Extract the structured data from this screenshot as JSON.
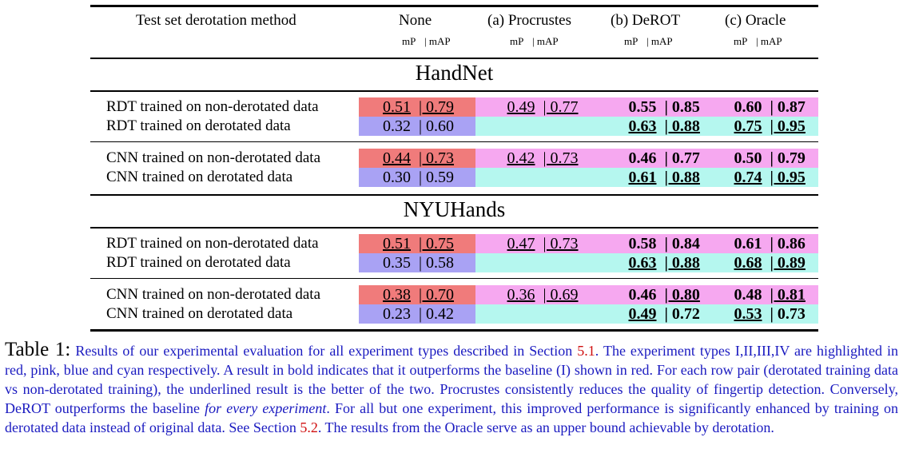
{
  "header": {
    "method_label": "Test set derotation method",
    "columns": [
      "None",
      "(a) Procrustes",
      "(b) DeROT",
      "(c) Oracle"
    ],
    "sublabel_mp": "mP",
    "sublabel_map": "| mAP"
  },
  "sections": [
    {
      "name": "HandNet",
      "groups": [
        {
          "rows": [
            {
              "label": "RDT trained on non-derotated data",
              "cells": [
                {
                  "mp": "0.51",
                  "map": "| 0.79"
                },
                {
                  "mp": "0.49",
                  "map": "| 0.77"
                },
                {
                  "mp": "0.55",
                  "map": "| 0.85"
                },
                {
                  "mp": "0.60",
                  "map": "| 0.87"
                }
              ]
            },
            {
              "label": "RDT trained on derotated data",
              "cells": [
                {
                  "mp": "0.32",
                  "map": "| 0.60"
                },
                {
                  "mp": "",
                  "map": ""
                },
                {
                  "mp": "0.63",
                  "map": "| 0.88"
                },
                {
                  "mp": "0.75",
                  "map": "| 0.95"
                }
              ]
            }
          ]
        },
        {
          "rows": [
            {
              "label": "CNN trained on non-derotated data",
              "cells": [
                {
                  "mp": "0.44",
                  "map": "| 0.73"
                },
                {
                  "mp": "0.42",
                  "map": "| 0.73"
                },
                {
                  "mp": "0.46",
                  "map": "| 0.77"
                },
                {
                  "mp": "0.50",
                  "map": "| 0.79"
                }
              ]
            },
            {
              "label": "CNN trained on derotated data",
              "cells": [
                {
                  "mp": "0.30",
                  "map": "| 0.59"
                },
                {
                  "mp": "",
                  "map": ""
                },
                {
                  "mp": "0.61",
                  "map": "| 0.88"
                },
                {
                  "mp": "0.74",
                  "map": "| 0.95"
                }
              ]
            }
          ]
        }
      ]
    },
    {
      "name": "NYUHands",
      "groups": [
        {
          "rows": [
            {
              "label": "RDT trained on non-derotated data",
              "cells": [
                {
                  "mp": "0.51",
                  "map": "| 0.75"
                },
                {
                  "mp": "0.47",
                  "map": "| 0.73"
                },
                {
                  "mp": "0.58",
                  "map": "| 0.84"
                },
                {
                  "mp": "0.61",
                  "map": "| 0.86"
                }
              ]
            },
            {
              "label": "RDT trained on derotated data",
              "cells": [
                {
                  "mp": "0.35",
                  "map": "| 0.58"
                },
                {
                  "mp": "",
                  "map": ""
                },
                {
                  "mp": "0.63",
                  "map": "| 0.88"
                },
                {
                  "mp": "0.68",
                  "map": "| 0.89"
                }
              ]
            }
          ]
        },
        {
          "rows": [
            {
              "label": "CNN trained on non-derotated data",
              "cells": [
                {
                  "mp": "0.38",
                  "map": "| 0.70"
                },
                {
                  "mp": "0.36",
                  "map": "| 0.69"
                },
                {
                  "mp": "0.46",
                  "map": "| 0.80"
                },
                {
                  "mp": "0.48",
                  "map": "| 0.81"
                }
              ]
            },
            {
              "label": "CNN trained on derotated data",
              "cells": [
                {
                  "mp": "0.23",
                  "map": "| 0.42"
                },
                {
                  "mp": "",
                  "map": ""
                },
                {
                  "mp": "0.49",
                  "map": "| 0.72"
                },
                {
                  "mp": "0.53",
                  "map": "| 0.73"
                }
              ]
            }
          ]
        }
      ]
    }
  ],
  "colors": {
    "red": "#f07b7b",
    "pink": "#f6a8f0",
    "blue": "#a9a2f4",
    "cyan": "#b5f7ef"
  },
  "caption": {
    "table_number": "Table 1:",
    "part1": " Results of our experimental evaluation for all experiment types described in Section ",
    "ref1": "5.1",
    "part2": ". The experiment types I,II,III,IV are highlighted in red, pink, blue and cyan respectively. A result in bold indicates that it outperforms the baseline (I) shown in red. For each row pair (derotated training data vs non-derotated training), the underlined result is the better of the two. Procrustes consistently reduces the quality of fingertip detection. Conversely, DeROT outperforms the baseline ",
    "emph": "for every experiment",
    "part3": ". For all but one experiment, this improved performance is significantly enhanced by training on derotated data instead of original data. See Section ",
    "ref2": "5.2",
    "part4": ". The results from the Oracle serve as an upper bound achievable by derotation."
  }
}
